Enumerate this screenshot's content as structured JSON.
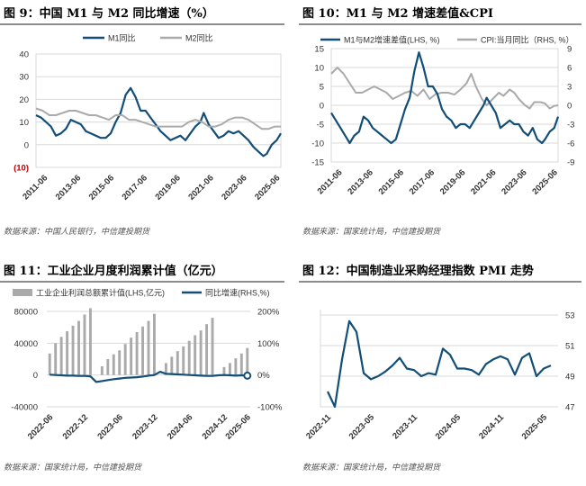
{
  "colors": {
    "primary": "#124e78",
    "gray": "#aaaaaa",
    "neg": "#c00000"
  },
  "chart_data": [
    {
      "type": "line",
      "title": "图 9：中国 M1 与 M2 同比增速（%）",
      "source": "数据来源：中国人民银行，中信建投期货",
      "xticks": [
        "2011-06",
        "2013-06",
        "2015-06",
        "2017-06",
        "2019-06",
        "2021-06",
        "2023-06",
        "2025-06"
      ],
      "yticks": [
        "40",
        "30",
        "20",
        "10",
        "0",
        "(10)"
      ],
      "ylim": [
        -10,
        40
      ],
      "t0": 2011.0,
      "t1": 2025.75,
      "series": [
        {
          "name": "M1同比",
          "color": "#124e78",
          "axis": "left",
          "x": [
            2011.0,
            2011.3,
            2011.6,
            2011.9,
            2012.2,
            2012.5,
            2012.8,
            2013.1,
            2013.4,
            2013.7,
            2014.0,
            2014.3,
            2014.6,
            2014.9,
            2015.2,
            2015.5,
            2015.8,
            2016.1,
            2016.4,
            2016.7,
            2017.0,
            2017.3,
            2017.6,
            2017.9,
            2018.2,
            2018.5,
            2018.8,
            2019.1,
            2019.4,
            2019.7,
            2020.0,
            2020.3,
            2020.6,
            2020.9,
            2021.1,
            2021.4,
            2021.7,
            2022.0,
            2022.3,
            2022.6,
            2022.9,
            2023.2,
            2023.5,
            2023.8,
            2024.1,
            2024.4,
            2024.7,
            2024.9,
            2025.2,
            2025.5,
            2025.75
          ],
          "values": [
            13,
            12,
            10,
            8,
            4,
            5,
            7,
            11,
            10,
            9,
            6,
            5,
            4,
            3,
            3,
            5,
            10,
            14,
            22,
            25,
            21,
            15,
            15,
            12,
            9,
            6,
            4,
            2,
            3,
            4,
            2,
            5,
            8,
            10,
            14,
            9,
            6,
            3,
            4,
            6,
            5,
            6,
            4,
            2,
            -1,
            -3,
            -5,
            -4,
            0,
            2,
            5
          ]
        },
        {
          "name": "M2同比",
          "color": "#aaaaaa",
          "axis": "left",
          "x": [
            2011.0,
            2011.4,
            2011.8,
            2012.2,
            2012.6,
            2013.0,
            2013.4,
            2013.8,
            2014.2,
            2014.6,
            2015.0,
            2015.4,
            2015.8,
            2016.2,
            2016.6,
            2017.0,
            2017.4,
            2017.8,
            2018.2,
            2018.6,
            2019.0,
            2019.4,
            2019.8,
            2020.2,
            2020.6,
            2021.0,
            2021.4,
            2021.8,
            2022.2,
            2022.6,
            2023.0,
            2023.4,
            2023.8,
            2024.2,
            2024.6,
            2025.0,
            2025.4,
            2025.75
          ],
          "values": [
            16,
            15,
            13,
            13,
            14,
            15,
            15,
            14,
            13,
            13,
            12,
            11,
            13,
            13,
            11,
            11,
            10,
            9,
            8,
            8,
            8,
            8,
            8,
            10,
            11,
            10,
            8,
            8,
            9,
            11,
            12,
            12,
            11,
            9,
            7,
            7,
            8,
            8
          ]
        }
      ]
    },
    {
      "type": "line",
      "title": "图 10：M1 与 M2 增速差值&CPI",
      "source": "数据来源：国家统计局，中信建投期货",
      "xticks": [
        "2011-06",
        "2013-06",
        "2015-06",
        "2017-06",
        "2019-06",
        "2021-06",
        "2023-06",
        "2025-06"
      ],
      "yticks": [
        "15",
        "10",
        "5",
        "0",
        "-5",
        "-10",
        "-15"
      ],
      "y2ticks": [
        "9",
        "6",
        "3",
        "0",
        "-3",
        "-6",
        "-9"
      ],
      "ylim": [
        -15,
        15
      ],
      "y2lim": [
        -9,
        9
      ],
      "t0": 2011.0,
      "t1": 2025.75,
      "series": [
        {
          "name": "M1与M2增速差值(LHS, %)",
          "color": "#124e78",
          "axis": "left",
          "x": [
            2011.0,
            2011.3,
            2011.6,
            2011.9,
            2012.2,
            2012.5,
            2012.8,
            2013.1,
            2013.4,
            2013.7,
            2014.0,
            2014.3,
            2014.6,
            2014.9,
            2015.2,
            2015.5,
            2015.8,
            2016.1,
            2016.4,
            2016.7,
            2017.0,
            2017.3,
            2017.6,
            2017.9,
            2018.2,
            2018.5,
            2018.8,
            2019.1,
            2019.4,
            2019.7,
            2020.0,
            2020.3,
            2020.6,
            2020.9,
            2021.1,
            2021.4,
            2021.7,
            2022.0,
            2022.3,
            2022.6,
            2022.9,
            2023.2,
            2023.5,
            2023.8,
            2024.1,
            2024.4,
            2024.7,
            2024.9,
            2025.2,
            2025.5,
            2025.75
          ],
          "values": [
            -2,
            -4,
            -6,
            -8,
            -10,
            -8,
            -7,
            -3,
            -4,
            -6,
            -7,
            -8,
            -9,
            -10,
            -9,
            -5,
            -1,
            2,
            9,
            14,
            10,
            5,
            5,
            3,
            -1,
            -3,
            -4,
            -6,
            -5,
            -5,
            -6,
            -4,
            -2,
            0,
            2,
            0,
            -2,
            -6,
            -5,
            -4,
            -5,
            -5,
            -7,
            -8,
            -6,
            -9,
            -10,
            -9,
            -7,
            -6,
            -3
          ]
        },
        {
          "name": "CPI:当月同比（RHS, %）",
          "color": "#aaaaaa",
          "axis": "right",
          "x": [
            2011.0,
            2011.4,
            2011.8,
            2012.2,
            2012.6,
            2013.0,
            2013.4,
            2013.8,
            2014.2,
            2014.6,
            2015.0,
            2015.4,
            2015.8,
            2016.2,
            2016.6,
            2017.0,
            2017.4,
            2017.8,
            2018.2,
            2018.6,
            2019.0,
            2019.4,
            2019.8,
            2020.1,
            2020.4,
            2020.8,
            2021.1,
            2021.5,
            2021.9,
            2022.2,
            2022.6,
            2022.9,
            2023.2,
            2023.6,
            2023.9,
            2024.2,
            2024.6,
            2024.9,
            2025.2,
            2025.5,
            2025.75
          ],
          "values": [
            5,
            6,
            5,
            3.5,
            2,
            2,
            2.5,
            3,
            2.5,
            2,
            1,
            1.5,
            2,
            2.3,
            1.5,
            2.5,
            1,
            1.8,
            2,
            2,
            1.7,
            2.5,
            3.5,
            5,
            3,
            1,
            0,
            1,
            2,
            1.5,
            2.5,
            2,
            1,
            0,
            -0.5,
            0.5,
            0.5,
            0.3,
            -0.5,
            -0.1,
            0
          ]
        }
      ]
    },
    {
      "type": "bar+line",
      "title": "图 11：工业企业月度利润累计值（亿元）",
      "source": "数据来源：国家统计局，中信建投期货",
      "xticks": [
        "2022-06",
        "2022-12",
        "2023-06",
        "2023-12",
        "2024-06",
        "2024-12",
        "2025-06"
      ],
      "yticks": [
        "80000",
        "40000",
        "0",
        "-40000"
      ],
      "y2ticks": [
        "200%",
        "100%",
        "0%",
        "-100%"
      ],
      "ylim": [
        -40000,
        80000
      ],
      "y2lim": [
        -100,
        200
      ],
      "series": [
        {
          "name": "工业企业利润总额累计值(LHS,亿元)",
          "color": "#aaaaaa",
          "axis": "left",
          "values": [
            27000,
            40000,
            48000,
            55000,
            62000,
            68000,
            76000,
            84000,
            0,
            11000,
            20000,
            26000,
            31000,
            39000,
            47000,
            54000,
            61000,
            68000,
            77000,
            0,
            15000,
            23000,
            30000,
            36000,
            43000,
            50000,
            56000,
            64000,
            72000,
            0,
            10000,
            15000,
            21000,
            27000,
            34000
          ]
        },
        {
          "name": "同比增速(RHS,%)",
          "color": "#124e78",
          "axis": "right",
          "values": [
            1,
            0,
            -1,
            -2,
            -2,
            -3,
            -3,
            -4,
            -22,
            -19,
            -16,
            -13,
            -11,
            -9,
            -8,
            -7,
            -5,
            -2,
            0,
            10,
            4,
            3,
            2,
            1,
            0,
            -1,
            -2,
            -3,
            -3,
            -1,
            0,
            -1,
            -2,
            -1,
            -2
          ]
        }
      ]
    },
    {
      "type": "line",
      "title": "图 12：中国制造业采购经理指数 PMI 走势",
      "source": "数据来源：国家统计局，中信建投期货",
      "xticks": [
        "2022-11",
        "2023-05",
        "2023-11",
        "2024-05",
        "2024-11",
        "2025-05"
      ],
      "yticks": [
        "53",
        "51",
        "49",
        "47"
      ],
      "ylim": [
        47,
        53
      ],
      "series": [
        {
          "name": "PMI",
          "color": "#124e78",
          "axis": "left",
          "values": [
            48.0,
            47.0,
            50.1,
            52.6,
            51.9,
            49.2,
            48.8,
            49.0,
            49.3,
            49.7,
            50.2,
            49.5,
            49.4,
            49.0,
            49.2,
            49.1,
            50.8,
            50.4,
            49.5,
            49.5,
            49.4,
            49.1,
            49.8,
            50.1,
            50.3,
            50.1,
            49.1,
            50.2,
            50.5,
            49.0,
            49.5,
            49.7
          ]
        }
      ]
    }
  ]
}
